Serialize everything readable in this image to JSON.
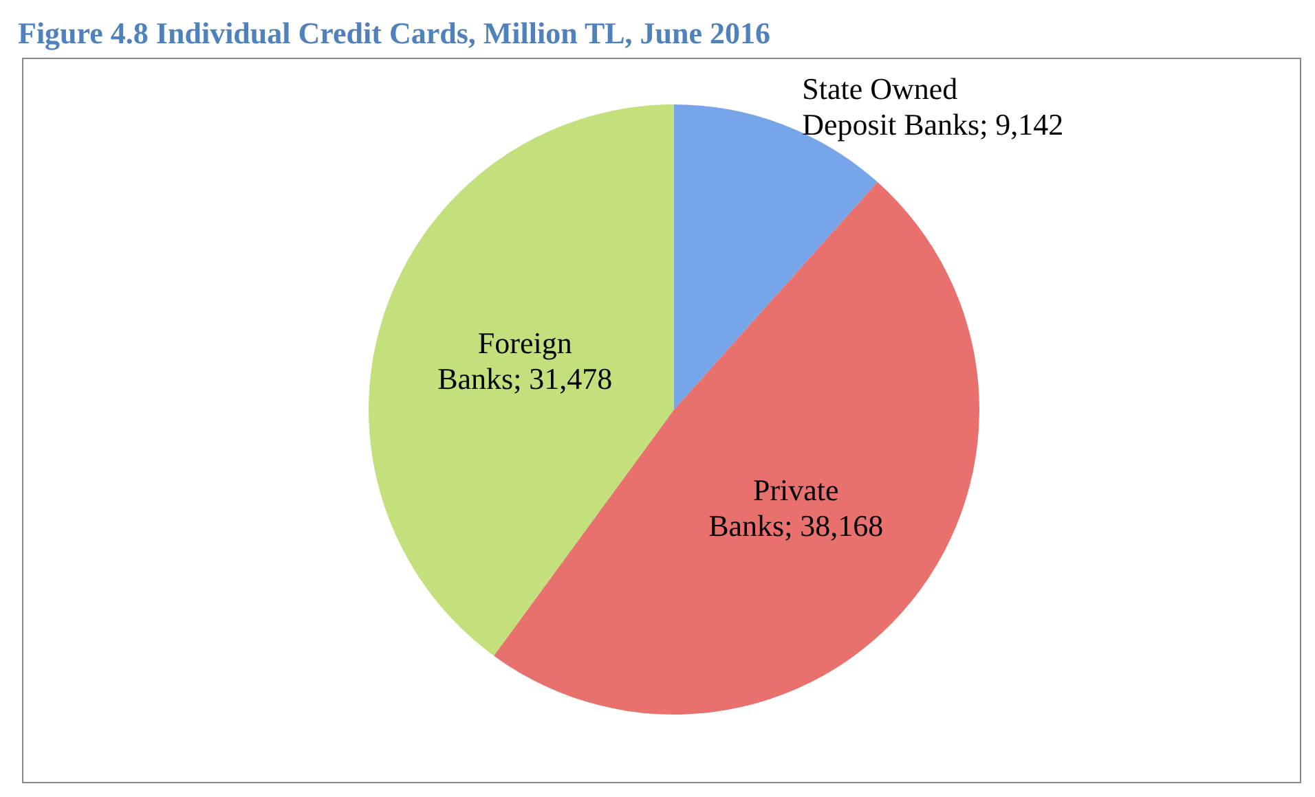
{
  "chart_data": {
    "type": "pie",
    "title": "Figure 4.8 Individual Credit Cards, Million TL, June 2016",
    "categories": [
      "State Owned Deposit Banks",
      "Private Banks",
      "Foreign Banks"
    ],
    "values": [
      9142,
      38168,
      31478
    ],
    "value_labels": [
      "9,142",
      "38,168",
      "31,478"
    ],
    "colors": [
      "#76a5ea",
      "#e8716d",
      "#c4e07c"
    ],
    "legend": false
  }
}
